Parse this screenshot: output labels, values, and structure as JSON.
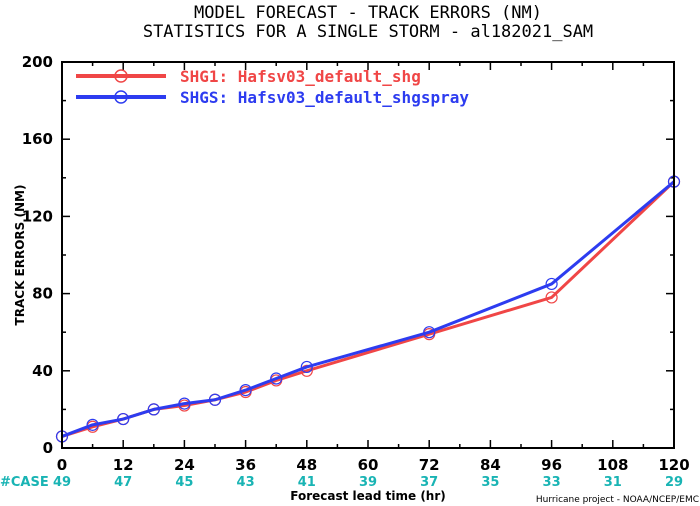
{
  "chart_data": {
    "type": "line",
    "title": "MODEL FORECAST - TRACK ERRORS (NM)",
    "subtitle": "STATISTICS FOR A SINGLE STORM - al182021_SAM",
    "xlabel": "Forecast lead time (hr)",
    "ylabel": "TRACK ERRORS (NM)",
    "xlim": [
      0,
      120
    ],
    "ylim": [
      0,
      200
    ],
    "xticks": [
      "0",
      "12",
      "24",
      "36",
      "48",
      "60",
      "72",
      "84",
      "96",
      "108",
      "120"
    ],
    "yticks": [
      "0",
      "40",
      "80",
      "120",
      "160",
      "200"
    ],
    "case_label": "#CASE",
    "cases": [
      "49",
      "47",
      "45",
      "43",
      "41",
      "39",
      "37",
      "35",
      "33",
      "31",
      "29"
    ],
    "credit": "Hurricane project - NOAA/NCEP/EMC",
    "legend_position": "top-left",
    "series": [
      {
        "name": "SHG1: Hafsv03_default_shg",
        "color": "#f04646",
        "x": [
          0,
          6,
          12,
          18,
          24,
          30,
          36,
          42,
          48,
          72,
          96,
          120
        ],
        "y": [
          6,
          11,
          15,
          20,
          22,
          25,
          29,
          35,
          40,
          59,
          78,
          138
        ]
      },
      {
        "name": "SHGS: Hafsv03_default_shgspray",
        "color": "#2d3cf0",
        "x": [
          0,
          6,
          12,
          18,
          24,
          30,
          36,
          42,
          48,
          72,
          96,
          120
        ],
        "y": [
          6,
          12,
          15,
          20,
          23,
          25,
          30,
          36,
          42,
          60,
          85,
          138
        ]
      }
    ]
  }
}
